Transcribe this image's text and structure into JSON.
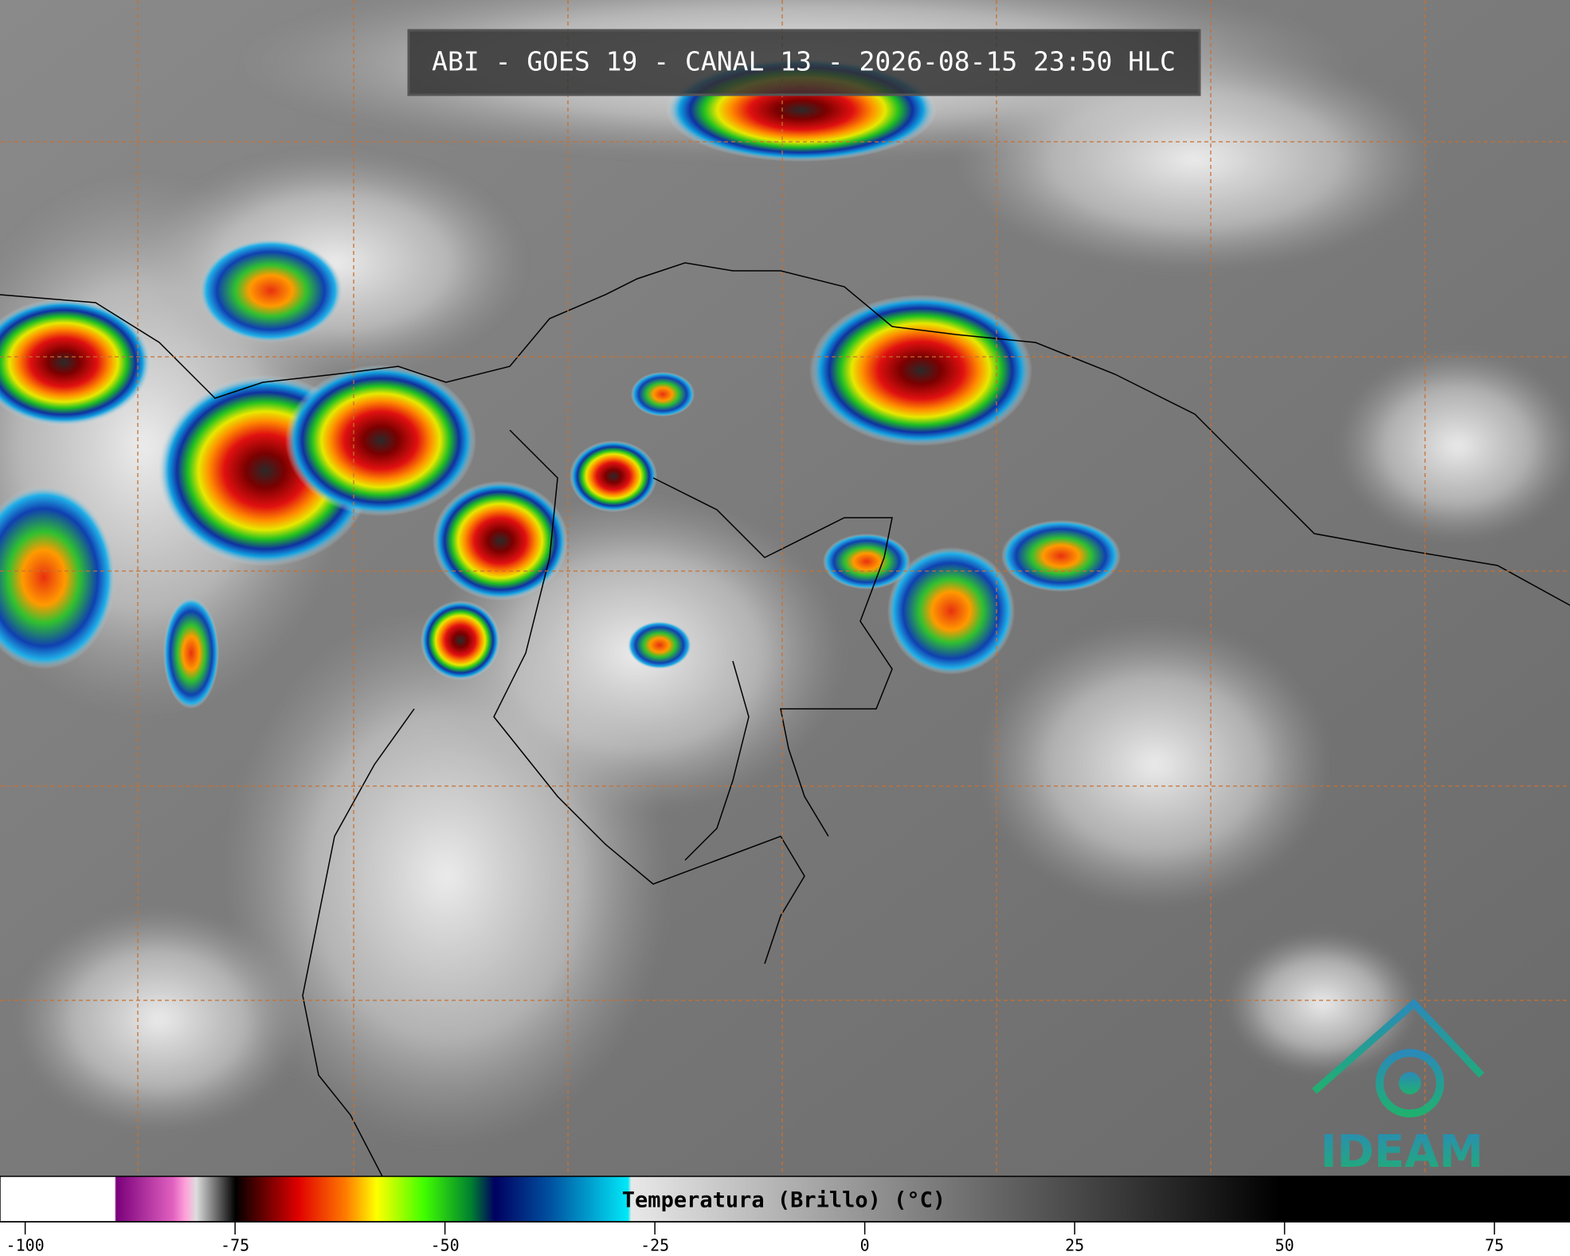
{
  "header": {
    "title": "ABI - GOES 19 - CANAL 13 - 2026-08-15 23:50 HLC"
  },
  "colorbar": {
    "label": "Temperatura (Brillo) (°C)",
    "lim": [
      -103,
      84
    ],
    "ticks": [
      -100,
      -75,
      -50,
      -25,
      0,
      25,
      50,
      75
    ]
  },
  "logo": {
    "text": "IDEAM"
  }
}
